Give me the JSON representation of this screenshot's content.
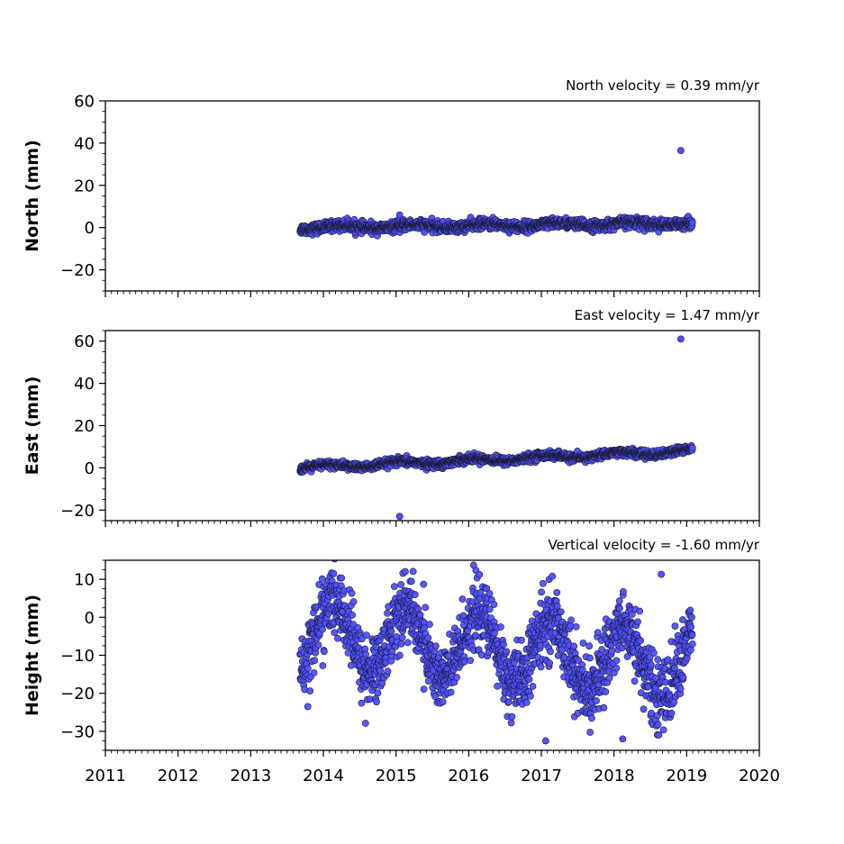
{
  "colors": {
    "marker_fill": "#5050ff",
    "marker_edge": "#1a1a33",
    "axis": "#000000"
  },
  "chart_data": [
    {
      "type": "scatter",
      "annotation": "North velocity = 0.39 mm/yr",
      "ylabel": "North (mm)",
      "xlim": [
        2011,
        2020
      ],
      "ylim": [
        -30,
        60
      ],
      "yticks": [
        -20,
        0,
        20,
        40,
        60
      ],
      "xticks": [],
      "legend": "none",
      "grid": false,
      "series": [
        {
          "x_range": [
            2013.68,
            2019.08
          ],
          "trend_mm_per_yr": 0.39,
          "start_value": 0,
          "noise_mm": 1.2,
          "seasonal_amp_mm": 0.8,
          "seasonal_phase": 0.0,
          "n_points": 1650
        }
      ],
      "outliers": [
        {
          "x": 2018.92,
          "y": 36.5
        },
        {
          "x": 2015.05,
          "y": 6.0
        }
      ]
    },
    {
      "type": "scatter",
      "annotation": "East velocity = 1.47 mm/yr",
      "ylabel": "East (mm)",
      "xlim": [
        2011,
        2020
      ],
      "ylim": [
        -25,
        65
      ],
      "yticks": [
        -20,
        0,
        20,
        40,
        60
      ],
      "xticks": [],
      "legend": "none",
      "grid": false,
      "series": [
        {
          "x_range": [
            2013.68,
            2019.08
          ],
          "trend_mm_per_yr": 1.47,
          "start_value": 0,
          "noise_mm": 0.9,
          "seasonal_amp_mm": 1.0,
          "seasonal_phase": 1.2,
          "n_points": 1650
        }
      ],
      "outliers": [
        {
          "x": 2018.92,
          "y": 61.0
        },
        {
          "x": 2015.05,
          "y": -23.0
        }
      ]
    },
    {
      "type": "scatter",
      "annotation": "Vertical velocity = -1.60 mm/yr",
      "ylabel": "Height (mm)",
      "xlim": [
        2011,
        2020
      ],
      "ylim": [
        -35,
        15
      ],
      "yticks": [
        -30,
        -20,
        -10,
        0,
        10
      ],
      "xticks": [
        "2011",
        "2012",
        "2013",
        "2014",
        "2015",
        "2016",
        "2017",
        "2018",
        "2019",
        "2020"
      ],
      "legend": "none",
      "grid": false,
      "series": [
        {
          "x_range": [
            2013.68,
            2019.08
          ],
          "trend_mm_per_yr": -1.6,
          "start_value": -4,
          "noise_mm": 4.5,
          "seasonal_amp_mm": 9.0,
          "seasonal_phase": 0.7,
          "n_points": 1650
        }
      ],
      "outliers": [
        {
          "x": 2018.65,
          "y": 11.3
        },
        {
          "x": 2017.06,
          "y": -32.5
        },
        {
          "x": 2018.12,
          "y": -32.0
        }
      ]
    }
  ]
}
